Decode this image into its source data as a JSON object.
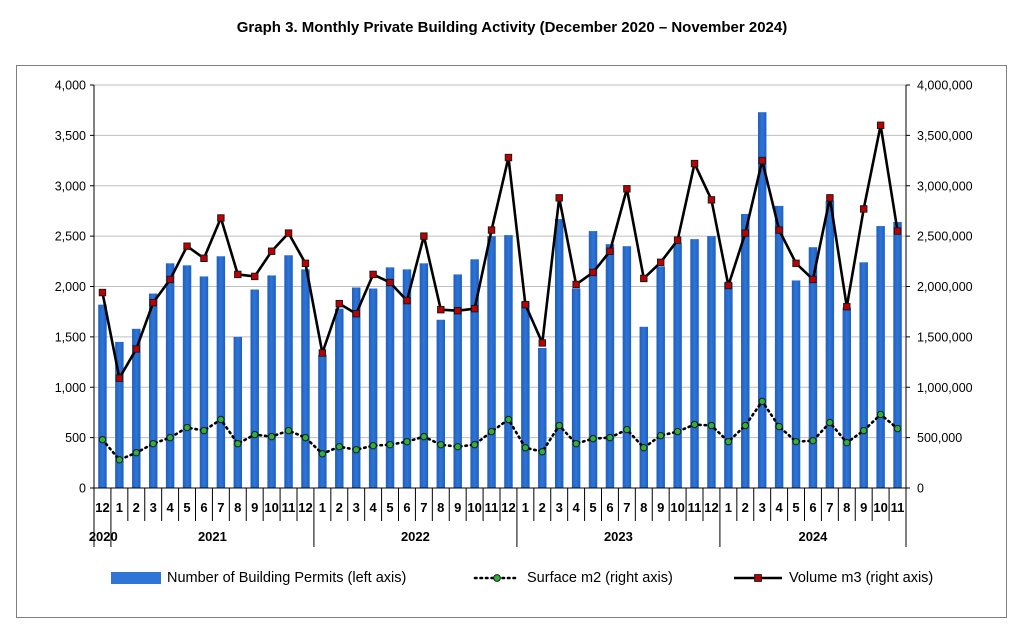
{
  "title": "Graph 3. Monthly Private Building Activity (December 2020 – November 2024)",
  "chart_data": {
    "type": "bar",
    "title": "Graph 3. Monthly Private Building Activity (December 2020 – November 2024)",
    "categories": [
      "12",
      "1",
      "2",
      "3",
      "4",
      "5",
      "6",
      "7",
      "8",
      "9",
      "10",
      "11",
      "12",
      "1",
      "2",
      "3",
      "4",
      "5",
      "6",
      "7",
      "8",
      "9",
      "10",
      "11",
      "12",
      "1",
      "2",
      "3",
      "4",
      "5",
      "6",
      "7",
      "8",
      "9",
      "10",
      "11",
      "12",
      "1",
      "2",
      "3",
      "4",
      "5",
      "6",
      "7",
      "8",
      "9",
      "10",
      "11"
    ],
    "years": [
      {
        "label": "2020",
        "start": 0,
        "end": 0
      },
      {
        "label": "2021",
        "start": 1,
        "end": 12
      },
      {
        "label": "2022",
        "start": 13,
        "end": 24
      },
      {
        "label": "2023",
        "start": 25,
        "end": 36
      },
      {
        "label": "2024",
        "start": 37,
        "end": 47
      }
    ],
    "left_axis": {
      "ylim": [
        0,
        4000
      ],
      "ticks": [
        "0",
        "500",
        "1,000",
        "1,500",
        "2,000",
        "2,500",
        "3,000",
        "3,500",
        "4,000"
      ]
    },
    "right_axis": {
      "ylim": [
        0,
        4000000
      ],
      "ticks": [
        "0",
        "500,000",
        "1,000,000",
        "1,500,000",
        "2,000,000",
        "2,500,000",
        "3,000,000",
        "3,500,000",
        "4,000,000"
      ]
    },
    "grid": true,
    "legend_position": "bottom",
    "series": [
      {
        "name": "Number of Building Permits (left axis)",
        "kind": "bar",
        "axis": "left",
        "color": "#2E75D6",
        "values": [
          1820,
          1450,
          1580,
          1930,
          2230,
          2210,
          2100,
          2300,
          1500,
          1970,
          2110,
          2310,
          2170,
          1320,
          1780,
          1990,
          1980,
          2190,
          2170,
          2230,
          1670,
          2120,
          2270,
          2500,
          2510,
          1850,
          1390,
          2670,
          1980,
          2550,
          2420,
          2400,
          1600,
          2200,
          2430,
          2470,
          2500,
          2040,
          2720,
          3730,
          2800,
          2060,
          2390,
          2850,
          1790,
          2240,
          2600,
          2640
        ]
      },
      {
        "name": "Surface m2  (right axis)",
        "kind": "line",
        "style": "dotted",
        "axis": "right",
        "color": "#000000",
        "marker_color": "#2DB33A",
        "values": [
          480000,
          280000,
          350000,
          440000,
          500000,
          600000,
          570000,
          680000,
          440000,
          530000,
          510000,
          570000,
          500000,
          340000,
          410000,
          380000,
          420000,
          430000,
          460000,
          510000,
          430000,
          410000,
          430000,
          560000,
          680000,
          400000,
          360000,
          620000,
          440000,
          490000,
          500000,
          580000,
          400000,
          520000,
          560000,
          630000,
          620000,
          460000,
          620000,
          860000,
          610000,
          460000,
          470000,
          650000,
          450000,
          570000,
          730000,
          590000
        ]
      },
      {
        "name": "Volume m3 (right axis)",
        "kind": "line",
        "style": "solid",
        "axis": "right",
        "color": "#000000",
        "marker_color": "#C00000",
        "values": [
          1940000,
          1090000,
          1380000,
          1840000,
          2070000,
          2400000,
          2280000,
          2680000,
          2120000,
          2100000,
          2350000,
          2530000,
          2230000,
          1340000,
          1830000,
          1730000,
          2120000,
          2040000,
          1860000,
          2500000,
          1770000,
          1760000,
          1780000,
          2560000,
          3280000,
          1820000,
          1440000,
          2880000,
          2020000,
          2140000,
          2350000,
          2970000,
          2080000,
          2240000,
          2460000,
          3220000,
          2860000,
          2010000,
          2530000,
          3250000,
          2560000,
          2230000,
          2070000,
          2880000,
          1800000,
          2770000,
          3600000,
          2550000
        ]
      }
    ]
  }
}
